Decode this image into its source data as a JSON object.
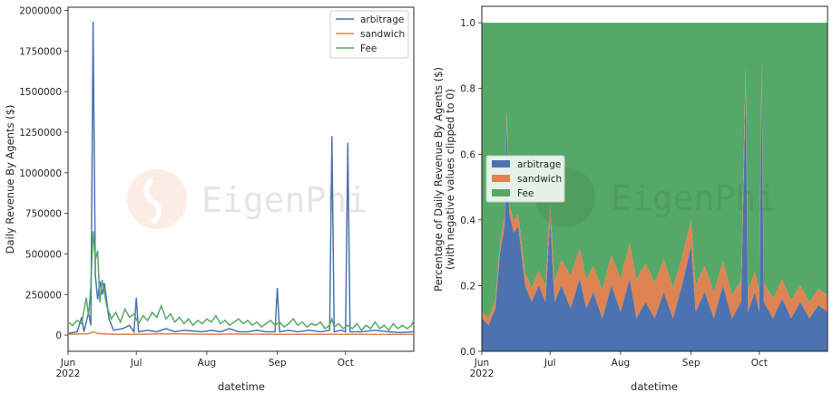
{
  "colors": {
    "arbitrage": "#4c72b0",
    "sandwich": "#dd8452",
    "fee": "#55a868"
  },
  "watermark": {
    "text": "EigenPhi"
  },
  "chart_data": [
    {
      "type": "line",
      "xlabel": "datetime",
      "ylabel": "Daily Revenue By Agents ($)",
      "x_ticks": [
        "Jun\n2022",
        "Jul",
        "Aug",
        "Sep",
        "Oct"
      ],
      "y_ticks": [
        "0",
        "250000",
        "500000",
        "750000",
        "1000000",
        "1250000",
        "1500000",
        "1750000",
        "2000000"
      ],
      "ylim": [
        -100000,
        2020000
      ],
      "xlim": [
        "2022-06-01",
        "2022-10-31"
      ],
      "legend": "top-right",
      "series": [
        {
          "name": "arbitrage",
          "points": [
            [
              "2022-06-01",
              10000
            ],
            [
              "2022-06-05",
              20000
            ],
            [
              "2022-06-07",
              110000
            ],
            [
              "2022-06-08",
              20000
            ],
            [
              "2022-06-10",
              140000
            ],
            [
              "2022-06-11",
              60000
            ],
            [
              "2022-06-12",
              1930000
            ],
            [
              "2022-06-13",
              370000
            ],
            [
              "2022-06-14",
              220000
            ],
            [
              "2022-06-15",
              330000
            ],
            [
              "2022-06-16",
              250000
            ],
            [
              "2022-06-17",
              320000
            ],
            [
              "2022-06-19",
              100000
            ],
            [
              "2022-06-21",
              30000
            ],
            [
              "2022-06-25",
              40000
            ],
            [
              "2022-06-28",
              60000
            ],
            [
              "2022-06-30",
              20000
            ],
            [
              "2022-07-01",
              230000
            ],
            [
              "2022-07-02",
              20000
            ],
            [
              "2022-07-06",
              30000
            ],
            [
              "2022-07-10",
              20000
            ],
            [
              "2022-07-14",
              40000
            ],
            [
              "2022-07-18",
              20000
            ],
            [
              "2022-07-22",
              30000
            ],
            [
              "2022-07-26",
              25000
            ],
            [
              "2022-07-30",
              20000
            ],
            [
              "2022-08-03",
              30000
            ],
            [
              "2022-08-07",
              20000
            ],
            [
              "2022-08-11",
              40000
            ],
            [
              "2022-08-15",
              20000
            ],
            [
              "2022-08-19",
              20000
            ],
            [
              "2022-08-23",
              30000
            ],
            [
              "2022-08-27",
              20000
            ],
            [
              "2022-08-31",
              20000
            ],
            [
              "2022-09-01",
              290000
            ],
            [
              "2022-09-02",
              20000
            ],
            [
              "2022-09-06",
              30000
            ],
            [
              "2022-09-10",
              20000
            ],
            [
              "2022-09-15",
              30000
            ],
            [
              "2022-09-20",
              20000
            ],
            [
              "2022-09-24",
              30000
            ],
            [
              "2022-09-25",
              1225000
            ],
            [
              "2022-09-26",
              20000
            ],
            [
              "2022-09-29",
              30000
            ],
            [
              "2022-10-01",
              20000
            ],
            [
              "2022-10-02",
              1185000
            ],
            [
              "2022-10-03",
              20000
            ],
            [
              "2022-10-08",
              20000
            ],
            [
              "2022-10-14",
              30000
            ],
            [
              "2022-10-20",
              20000
            ],
            [
              "2022-10-25",
              15000
            ],
            [
              "2022-10-31",
              20000
            ]
          ]
        },
        {
          "name": "sandwich",
          "points": [
            [
              "2022-06-01",
              5000
            ],
            [
              "2022-06-10",
              8000
            ],
            [
              "2022-06-12",
              20000
            ],
            [
              "2022-06-14",
              10000
            ],
            [
              "2022-06-20",
              5000
            ],
            [
              "2022-07-01",
              5000
            ],
            [
              "2022-07-15",
              8000
            ],
            [
              "2022-08-01",
              5000
            ],
            [
              "2022-08-15",
              6000
            ],
            [
              "2022-09-01",
              5000
            ],
            [
              "2022-09-15",
              5000
            ],
            [
              "2022-10-01",
              5000
            ],
            [
              "2022-10-15",
              4000
            ],
            [
              "2022-10-31",
              4000
            ]
          ]
        },
        {
          "name": "Fee",
          "points": [
            [
              "2022-06-01",
              80000
            ],
            [
              "2022-06-03",
              60000
            ],
            [
              "2022-06-05",
              90000
            ],
            [
              "2022-06-07",
              70000
            ],
            [
              "2022-06-09",
              230000
            ],
            [
              "2022-06-10",
              120000
            ],
            [
              "2022-06-11",
              300000
            ],
            [
              "2022-06-12",
              640000
            ],
            [
              "2022-06-13",
              460000
            ],
            [
              "2022-06-14",
              520000
            ],
            [
              "2022-06-15",
              200000
            ],
            [
              "2022-06-16",
              340000
            ],
            [
              "2022-06-18",
              180000
            ],
            [
              "2022-06-20",
              100000
            ],
            [
              "2022-06-22",
              140000
            ],
            [
              "2022-06-24",
              80000
            ],
            [
              "2022-06-26",
              160000
            ],
            [
              "2022-06-28",
              110000
            ],
            [
              "2022-06-30",
              130000
            ],
            [
              "2022-07-02",
              70000
            ],
            [
              "2022-07-04",
              120000
            ],
            [
              "2022-07-06",
              90000
            ],
            [
              "2022-07-08",
              140000
            ],
            [
              "2022-07-10",
              110000
            ],
            [
              "2022-07-12",
              180000
            ],
            [
              "2022-07-14",
              100000
            ],
            [
              "2022-07-16",
              130000
            ],
            [
              "2022-07-18",
              80000
            ],
            [
              "2022-07-20",
              110000
            ],
            [
              "2022-07-22",
              70000
            ],
            [
              "2022-07-24",
              100000
            ],
            [
              "2022-07-26",
              60000
            ],
            [
              "2022-07-28",
              90000
            ],
            [
              "2022-07-30",
              70000
            ],
            [
              "2022-08-01",
              100000
            ],
            [
              "2022-08-03",
              80000
            ],
            [
              "2022-08-05",
              120000
            ],
            [
              "2022-08-07",
              70000
            ],
            [
              "2022-08-09",
              90000
            ],
            [
              "2022-08-11",
              60000
            ],
            [
              "2022-08-13",
              80000
            ],
            [
              "2022-08-15",
              100000
            ],
            [
              "2022-08-17",
              70000
            ],
            [
              "2022-08-19",
              90000
            ],
            [
              "2022-08-21",
              60000
            ],
            [
              "2022-08-23",
              80000
            ],
            [
              "2022-08-25",
              50000
            ],
            [
              "2022-08-27",
              70000
            ],
            [
              "2022-08-29",
              90000
            ],
            [
              "2022-08-31",
              60000
            ],
            [
              "2022-09-02",
              80000
            ],
            [
              "2022-09-04",
              50000
            ],
            [
              "2022-09-06",
              70000
            ],
            [
              "2022-09-08",
              100000
            ],
            [
              "2022-09-10",
              60000
            ],
            [
              "2022-09-12",
              80000
            ],
            [
              "2022-09-14",
              50000
            ],
            [
              "2022-09-16",
              70000
            ],
            [
              "2022-09-18",
              60000
            ],
            [
              "2022-09-20",
              80000
            ],
            [
              "2022-09-22",
              40000
            ],
            [
              "2022-09-24",
              60000
            ],
            [
              "2022-09-25",
              100000
            ],
            [
              "2022-09-26",
              50000
            ],
            [
              "2022-09-28",
              70000
            ],
            [
              "2022-09-30",
              40000
            ],
            [
              "2022-10-02",
              60000
            ],
            [
              "2022-10-04",
              40000
            ],
            [
              "2022-10-06",
              70000
            ],
            [
              "2022-10-08",
              30000
            ],
            [
              "2022-10-10",
              60000
            ],
            [
              "2022-10-12",
              40000
            ],
            [
              "2022-10-14",
              80000
            ],
            [
              "2022-10-16",
              40000
            ],
            [
              "2022-10-18",
              60000
            ],
            [
              "2022-10-20",
              30000
            ],
            [
              "2022-10-22",
              70000
            ],
            [
              "2022-10-24",
              40000
            ],
            [
              "2022-10-26",
              60000
            ],
            [
              "2022-10-28",
              40000
            ],
            [
              "2022-10-30",
              60000
            ],
            [
              "2022-10-31",
              90000
            ]
          ]
        }
      ]
    },
    {
      "type": "area",
      "stacked": true,
      "xlabel": "datetime",
      "ylabel": "Percentage of Daily Revenue By Agents ($)",
      "ylabel2": "(with negative values clipped to 0)",
      "x_ticks": [
        "Jun\n2022",
        "Jul",
        "Aug",
        "Sep",
        "Oct"
      ],
      "y_ticks": [
        "0.0",
        "0.2",
        "0.4",
        "0.6",
        "0.8",
        "1.0"
      ],
      "ylim": [
        0,
        1.05
      ],
      "xlim": [
        "2022-06-01",
        "2022-10-31"
      ],
      "legend": "center-left",
      "series": [
        {
          "name": "arbitrage",
          "points": [
            [
              "2022-06-01",
              0.1
            ],
            [
              "2022-06-04",
              0.08
            ],
            [
              "2022-06-07",
              0.13
            ],
            [
              "2022-06-09",
              0.3
            ],
            [
              "2022-06-11",
              0.38
            ],
            [
              "2022-06-12",
              0.7
            ],
            [
              "2022-06-13",
              0.42
            ],
            [
              "2022-06-15",
              0.36
            ],
            [
              "2022-06-17",
              0.38
            ],
            [
              "2022-06-20",
              0.2
            ],
            [
              "2022-06-23",
              0.15
            ],
            [
              "2022-06-26",
              0.2
            ],
            [
              "2022-06-29",
              0.15
            ],
            [
              "2022-07-01",
              0.4
            ],
            [
              "2022-07-03",
              0.15
            ],
            [
              "2022-07-06",
              0.2
            ],
            [
              "2022-07-10",
              0.13
            ],
            [
              "2022-07-14",
              0.22
            ],
            [
              "2022-07-17",
              0.13
            ],
            [
              "2022-07-20",
              0.18
            ],
            [
              "2022-07-24",
              0.1
            ],
            [
              "2022-07-28",
              0.2
            ],
            [
              "2022-08-01",
              0.12
            ],
            [
              "2022-08-05",
              0.22
            ],
            [
              "2022-08-08",
              0.1
            ],
            [
              "2022-08-12",
              0.15
            ],
            [
              "2022-08-16",
              0.1
            ],
            [
              "2022-08-20",
              0.18
            ],
            [
              "2022-08-24",
              0.1
            ],
            [
              "2022-08-28",
              0.2
            ],
            [
              "2022-09-01",
              0.32
            ],
            [
              "2022-09-03",
              0.12
            ],
            [
              "2022-09-07",
              0.18
            ],
            [
              "2022-09-11",
              0.1
            ],
            [
              "2022-09-15",
              0.2
            ],
            [
              "2022-09-19",
              0.1
            ],
            [
              "2022-09-23",
              0.15
            ],
            [
              "2022-09-25",
              0.8
            ],
            [
              "2022-09-26",
              0.12
            ],
            [
              "2022-09-29",
              0.18
            ],
            [
              "2022-10-01",
              0.12
            ],
            [
              "2022-10-02",
              0.82
            ],
            [
              "2022-10-03",
              0.15
            ],
            [
              "2022-10-07",
              0.1
            ],
            [
              "2022-10-11",
              0.16
            ],
            [
              "2022-10-15",
              0.1
            ],
            [
              "2022-10-19",
              0.15
            ],
            [
              "2022-10-23",
              0.1
            ],
            [
              "2022-10-27",
              0.14
            ],
            [
              "2022-10-31",
              0.12
            ]
          ]
        },
        {
          "name": "sandwich",
          "points": [
            [
              "2022-06-01",
              0.02
            ],
            [
              "2022-06-10",
              0.03
            ],
            [
              "2022-06-20",
              0.04
            ],
            [
              "2022-07-01",
              0.05
            ],
            [
              "2022-07-10",
              0.1
            ],
            [
              "2022-07-20",
              0.08
            ],
            [
              "2022-08-01",
              0.1
            ],
            [
              "2022-08-10",
              0.12
            ],
            [
              "2022-08-20",
              0.1
            ],
            [
              "2022-09-01",
              0.08
            ],
            [
              "2022-09-10",
              0.08
            ],
            [
              "2022-09-20",
              0.07
            ],
            [
              "2022-10-01",
              0.06
            ],
            [
              "2022-10-10",
              0.06
            ],
            [
              "2022-10-20",
              0.05
            ],
            [
              "2022-10-31",
              0.05
            ]
          ]
        },
        {
          "name": "Fee",
          "points": [
            [
              "2022-06-01",
              0.88
            ],
            [
              "2022-10-31",
              0.83
            ]
          ]
        }
      ]
    }
  ]
}
